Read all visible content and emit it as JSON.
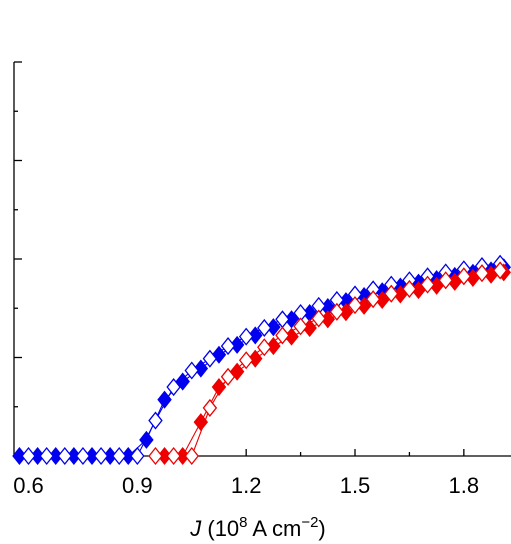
{
  "chart_data": {
    "type": "line",
    "xlabel": {
      "var": "J",
      "text": " (10",
      "sup1": "8",
      "text2": " A cm",
      "sup2": "−2",
      "text3": ")"
    },
    "xlim": [
      0.56,
      1.93
    ],
    "xticks": [
      0.6,
      0.9,
      1.2,
      1.5,
      1.8
    ],
    "xtick_labels": [
      "0.6",
      "0.9",
      "1.2",
      "1.5",
      "1.8"
    ],
    "ylim": [
      0,
      1.0
    ],
    "y_tick_labels_shown": false,
    "grid": false,
    "legend": "none",
    "series": [
      {
        "color": "#0000ee",
        "marker": "diamond-filled",
        "x": [
          0.575,
          0.625,
          0.675,
          0.725,
          0.775,
          0.825,
          0.875,
          0.925,
          0.975,
          1.025,
          1.075,
          1.125,
          1.175,
          1.225,
          1.275,
          1.325,
          1.375,
          1.425,
          1.475,
          1.525,
          1.575,
          1.625,
          1.675,
          1.725,
          1.775,
          1.825,
          1.875,
          1.91
        ],
        "y": [
          0,
          0,
          0,
          0,
          0,
          0,
          0,
          0.041,
          0.143,
          0.189,
          0.222,
          0.257,
          0.282,
          0.306,
          0.327,
          0.347,
          0.363,
          0.378,
          0.393,
          0.406,
          0.418,
          0.43,
          0.44,
          0.449,
          0.457,
          0.465,
          0.471,
          0.479
        ]
      },
      {
        "color": "#0000ee",
        "marker": "diamond-open",
        "x": [
          0.6,
          0.65,
          0.7,
          0.75,
          0.8,
          0.85,
          0.9,
          0.95,
          1.0,
          1.05,
          1.1,
          1.15,
          1.2,
          1.25,
          1.3,
          1.35,
          1.4,
          1.45,
          1.5,
          1.55,
          1.6,
          1.65,
          1.7,
          1.75,
          1.8,
          1.85,
          1.9
        ],
        "y": [
          0,
          0,
          0,
          0,
          0,
          0,
          0,
          0.09,
          0.175,
          0.217,
          0.247,
          0.279,
          0.303,
          0.325,
          0.347,
          0.363,
          0.381,
          0.396,
          0.41,
          0.423,
          0.435,
          0.446,
          0.456,
          0.466,
          0.474,
          0.482,
          0.488
        ]
      },
      {
        "color": "#ee0000",
        "marker": "diamond-filled",
        "x": [
          0.975,
          1.025,
          1.075,
          1.125,
          1.175,
          1.225,
          1.275,
          1.325,
          1.375,
          1.425,
          1.475,
          1.525,
          1.575,
          1.625,
          1.675,
          1.725,
          1.775,
          1.825,
          1.875,
          1.91
        ],
        "y": [
          0,
          0,
          0.086,
          0.175,
          0.214,
          0.247,
          0.279,
          0.303,
          0.325,
          0.347,
          0.365,
          0.381,
          0.396,
          0.41,
          0.421,
          0.432,
          0.442,
          0.452,
          0.46,
          0.466
        ]
      },
      {
        "color": "#ee0000",
        "marker": "diamond-open",
        "x": [
          0.95,
          1.0,
          1.05,
          1.1,
          1.15,
          1.2,
          1.25,
          1.3,
          1.35,
          1.4,
          1.45,
          1.5,
          1.55,
          1.6,
          1.65,
          1.7,
          1.75,
          1.8,
          1.85,
          1.9
        ],
        "y": [
          0,
          0,
          0,
          0.122,
          0.201,
          0.243,
          0.276,
          0.306,
          0.329,
          0.349,
          0.366,
          0.383,
          0.398,
          0.412,
          0.424,
          0.435,
          0.446,
          0.456,
          0.464,
          0.471
        ]
      }
    ]
  }
}
